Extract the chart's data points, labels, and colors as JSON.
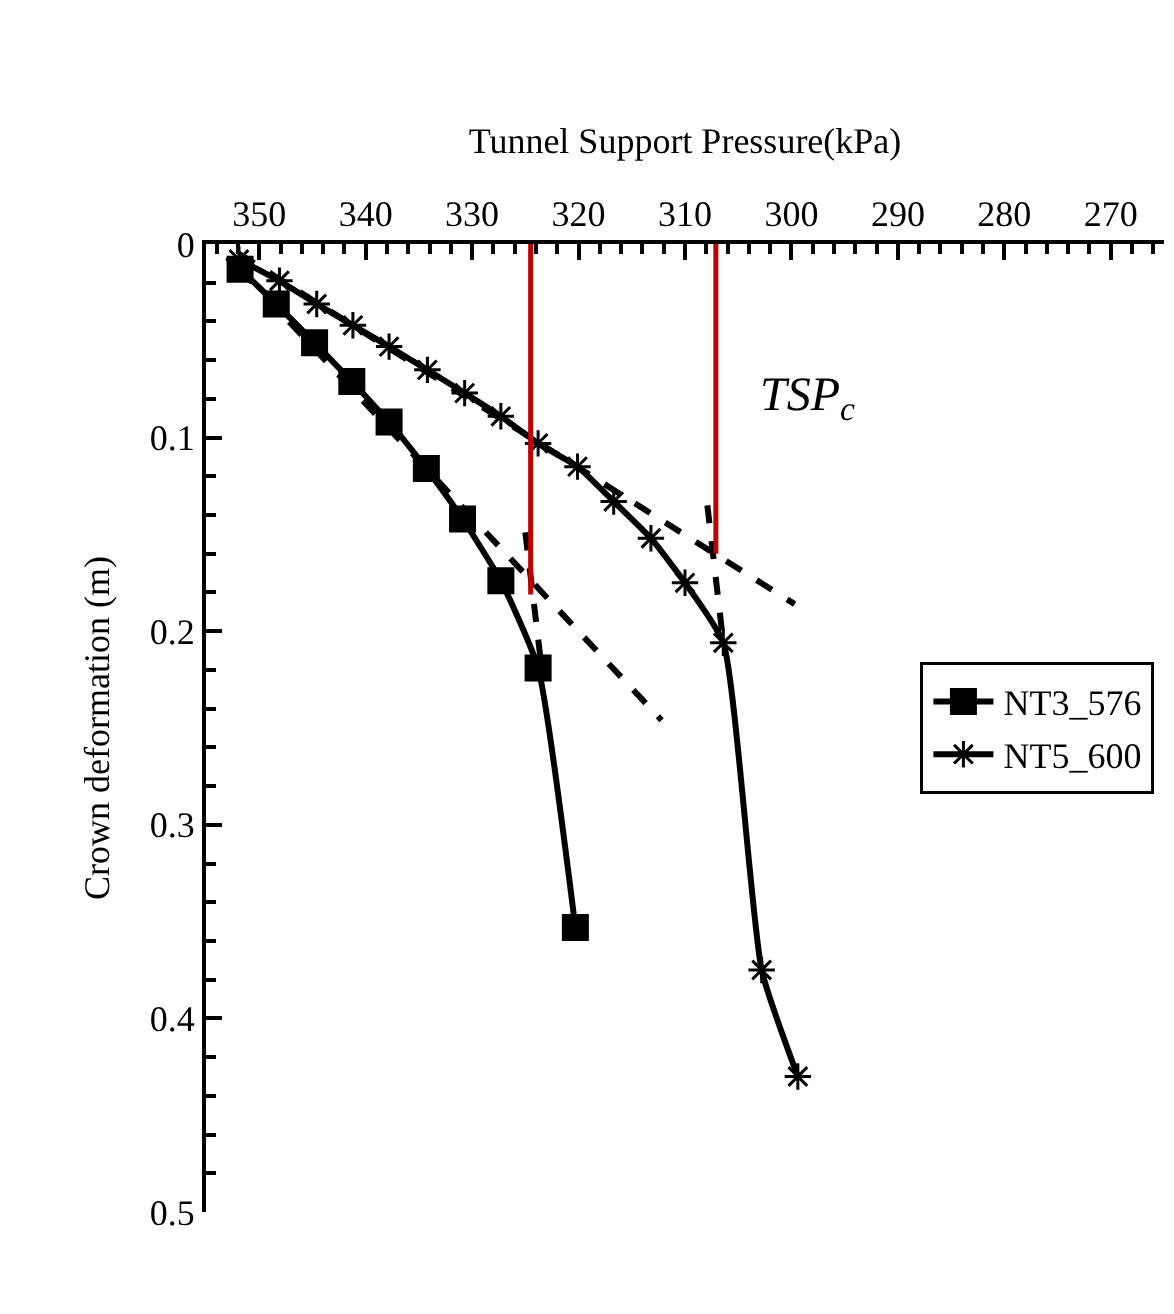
{
  "chart_data": {
    "type": "line",
    "xlabel": "Tunnel Support Pressure(kPa)",
    "ylabel": "Crown deformation (m)",
    "xlim": [
      355,
      265
    ],
    "xticks": [
      350,
      340,
      330,
      320,
      310,
      300,
      290,
      280,
      270
    ],
    "ylim": [
      0.5,
      0
    ],
    "yticks": [
      0,
      0.1,
      0.2,
      0.3,
      0.4,
      0.5
    ],
    "legend": "right",
    "annotations": [
      "TSP$_{c}$"
    ],
    "series": [
      {
        "name": "NT3_576",
        "color": "#000000",
        "marker": "square",
        "x": [
          351.8,
          348.4,
          344.8,
          341.3,
          337.8,
          334.3,
          330.9,
          327.3,
          323.8,
          320.3
        ],
        "values": [
          0.013,
          0.031,
          0.051,
          0.071,
          0.092,
          0.116,
          0.142,
          0.174,
          0.219,
          0.353
        ]
      },
      {
        "name": "NT5_600",
        "color": "#000000",
        "marker": "cross",
        "x": [
          351.9,
          348.1,
          344.6,
          341.2,
          337.8,
          334.2,
          330.7,
          327.3,
          323.8,
          320.1,
          316.7,
          313.2,
          310.0,
          306.4,
          302.8,
          299.4
        ],
        "values": [
          0.008,
          0.019,
          0.031,
          0.042,
          0.053,
          0.065,
          0.077,
          0.089,
          0.103,
          0.115,
          0.133,
          0.152,
          0.175,
          0.206,
          0.375,
          0.43
        ]
      },
      {
        "color": "#000000",
        "marker": "none",
        "line_style": "dashed",
        "x": [
          351.8,
          312.2
        ],
        "values": [
          0.013,
          0.246
        ]
      },
      {
        "color": "#000000",
        "marker": "none",
        "line_style": "dashed",
        "x": [
          325.0,
          323.4
        ],
        "values": [
          0.149,
          0.222
        ]
      },
      {
        "color": "#000000",
        "marker": "none",
        "line_style": "dashed",
        "x": [
          351.9,
          299.7
        ],
        "values": [
          0.005,
          0.186
        ]
      },
      {
        "color": "#000000",
        "marker": "none",
        "line_style": "dashed",
        "x": [
          307.9,
          306.4
        ],
        "values": [
          0.135,
          0.206
        ]
      },
      {
        "color": "#c00000",
        "marker": "none",
        "x": [
          324.5,
          324.5
        ],
        "values": [
          0,
          0.181
        ]
      },
      {
        "color": "#c00000",
        "marker": "none",
        "x": [
          307.1,
          307.1
        ],
        "values": [
          0,
          0.16
        ]
      }
    ]
  }
}
